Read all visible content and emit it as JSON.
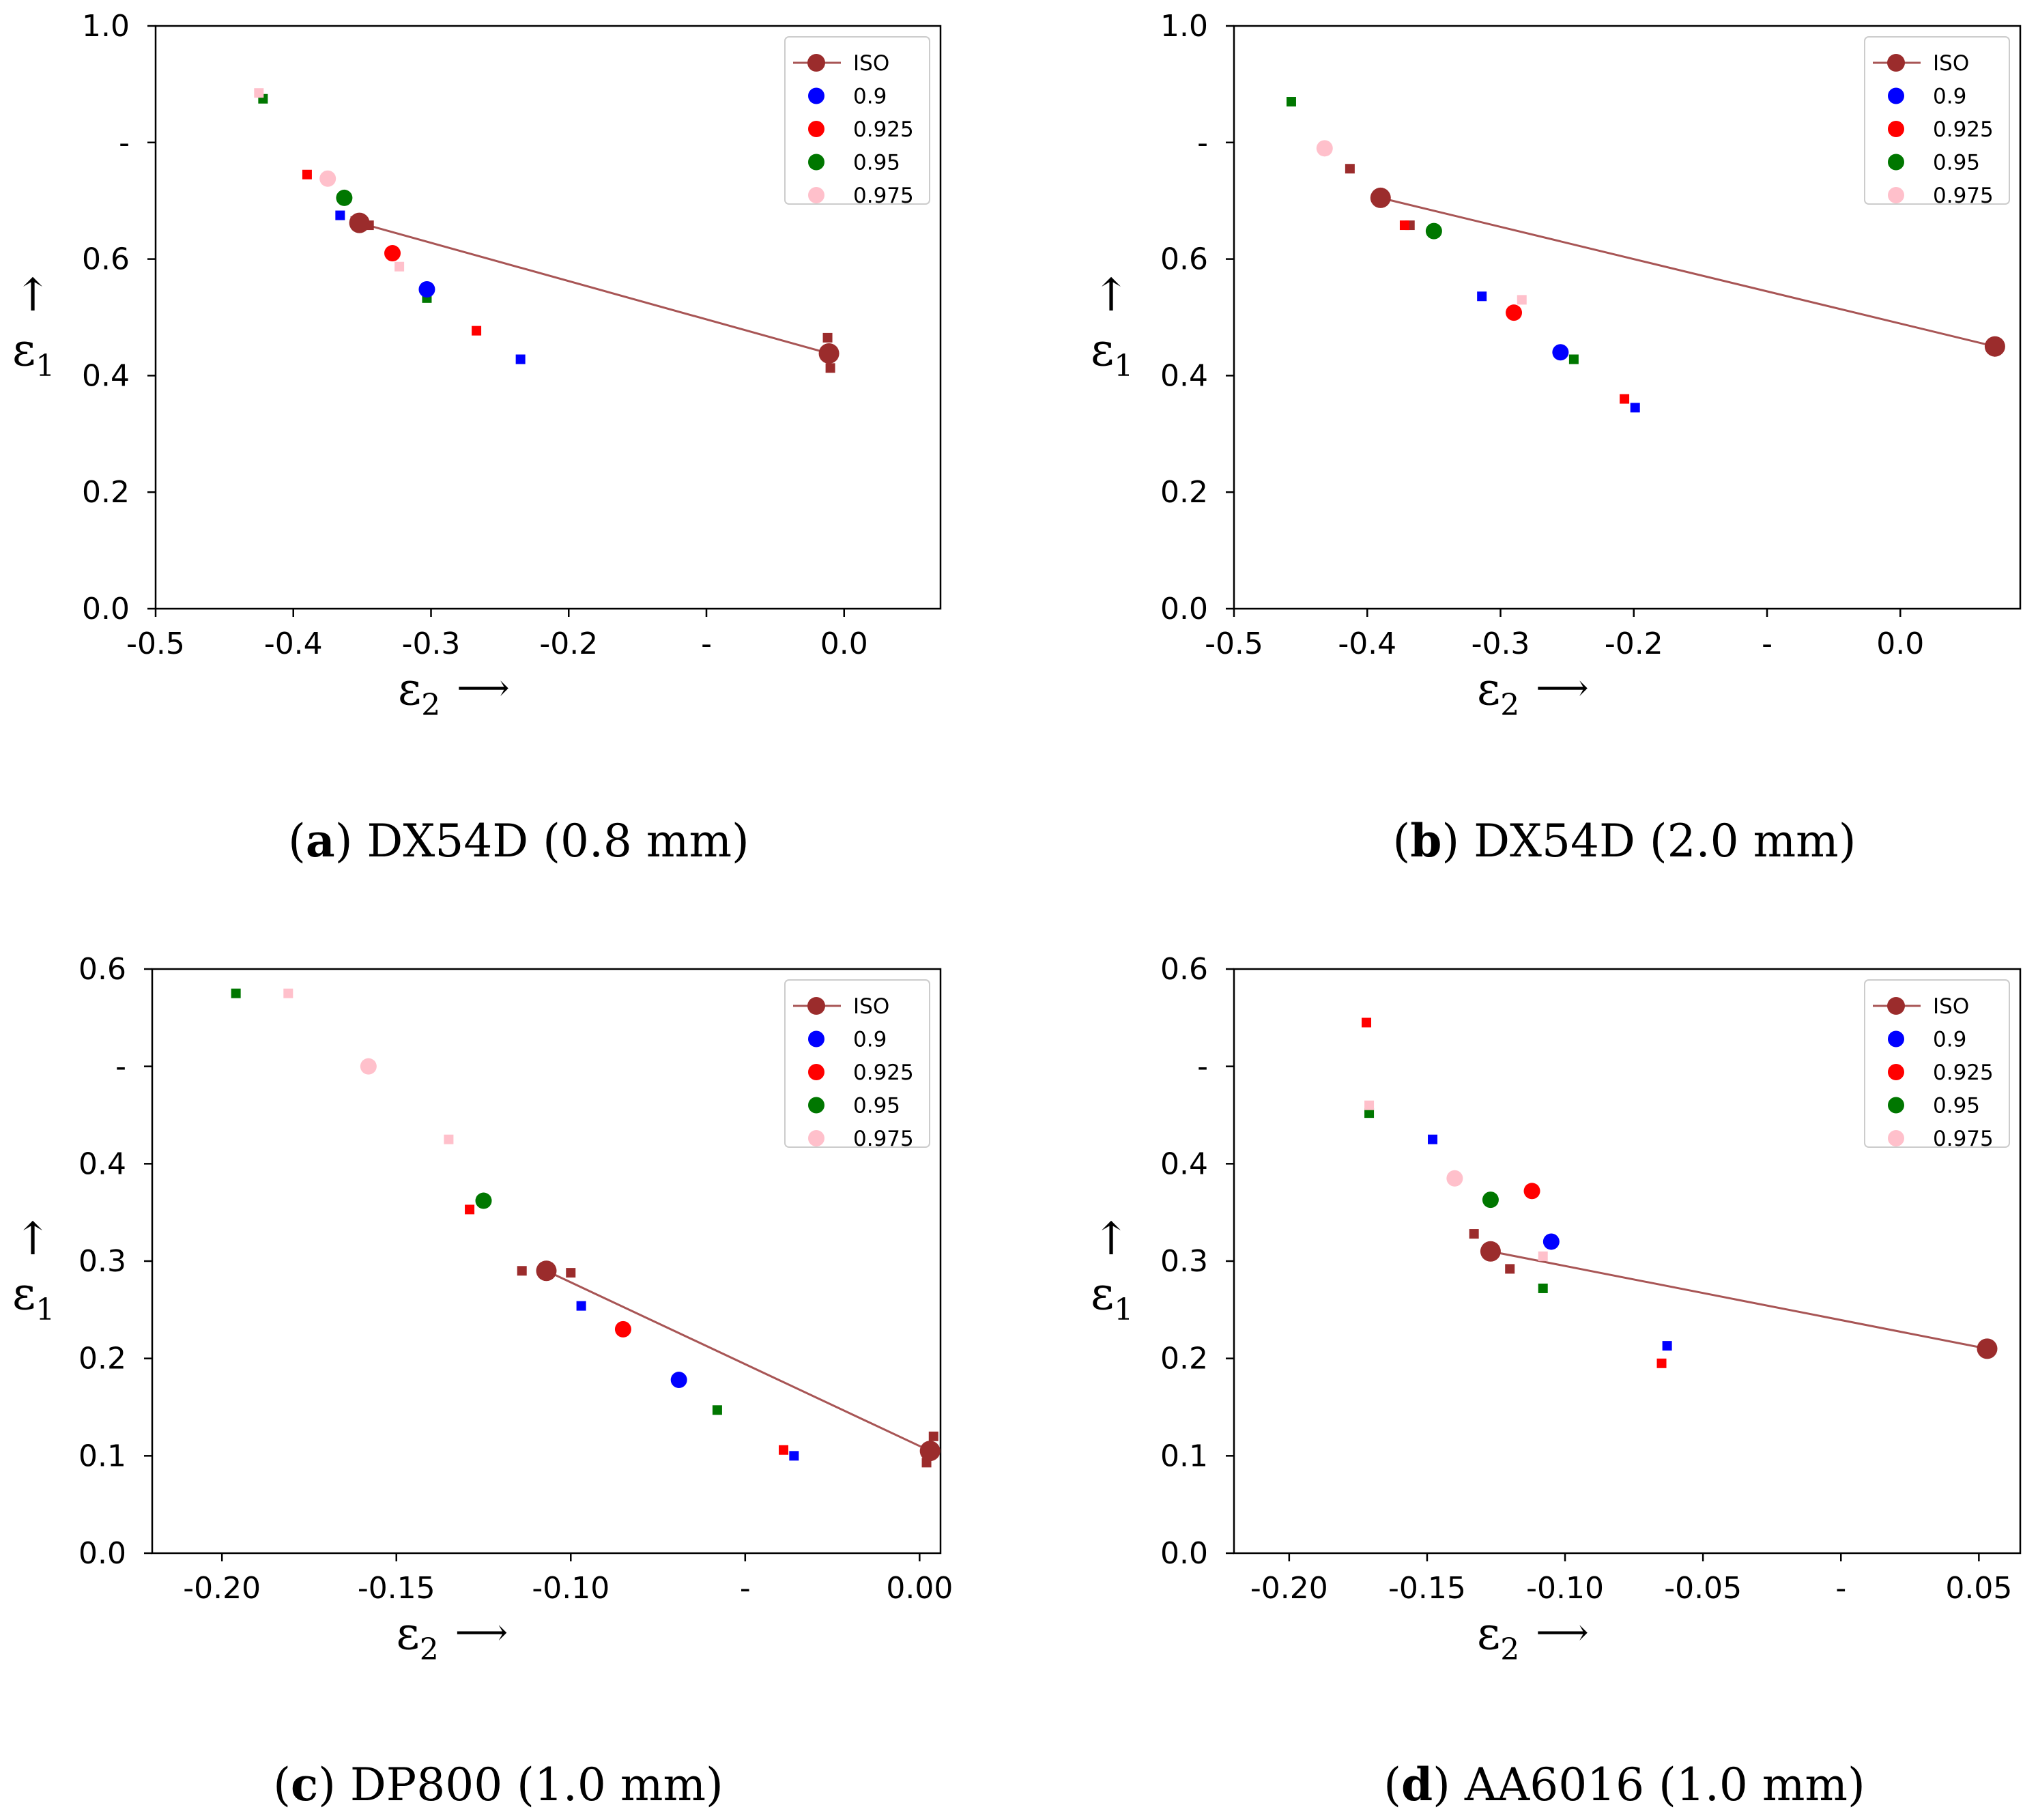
{
  "legend_labels": [
    "ISO",
    "0.9",
    "0.925",
    "0.95",
    "0.975"
  ],
  "series_colors": {
    "ISO": "#9b2c2c",
    "0.9": "#0000ff",
    "0.925": "#ff0000",
    "0.95": "#007700",
    "0.975": "#ffc0cb"
  },
  "axis_text": {
    "x_symbol": "ε",
    "x_sub": "2",
    "y_symbol": "ε",
    "y_sub": "1",
    "x_arrow": "⟶",
    "y_arrow": "↑"
  },
  "panels": [
    {
      "caption_letter": "a",
      "caption_text": "DX54D (0.8 mm)",
      "caption_open": "(",
      "caption_close": ")",
      "chart_data": {
        "type": "scatter",
        "xlim": [
          -0.5,
          0.07
        ],
        "ylim": [
          0.0,
          1.0
        ],
        "xticks": [
          -0.5,
          -0.4,
          -0.3,
          -0.2,
          -0.1,
          0.0
        ],
        "xtick_labels": [
          "-0.5",
          "-0.4",
          "-0.3",
          "-0.2",
          "-",
          "0.0"
        ],
        "yticks": [
          0.0,
          0.2,
          0.4,
          0.6,
          0.8,
          1.0
        ],
        "ytick_labels": [
          "0.0",
          "0.2",
          "0.4",
          "0.6",
          "-",
          "1.0"
        ],
        "legend_position": "top-right",
        "grid": false,
        "iso_line": [
          [
            -0.352,
            0.662
          ],
          [
            -0.011,
            0.438
          ]
        ],
        "large_points": [
          {
            "series": "ISO",
            "x": -0.352,
            "y": 0.662
          },
          {
            "series": "ISO",
            "x": -0.011,
            "y": 0.438
          },
          {
            "series": "0.9",
            "x": -0.303,
            "y": 0.548
          },
          {
            "series": "0.925",
            "x": -0.328,
            "y": 0.61
          },
          {
            "series": "0.95",
            "x": -0.363,
            "y": 0.705
          },
          {
            "series": "0.975",
            "x": -0.375,
            "y": 0.738
          }
        ],
        "small_points": [
          {
            "series": "ISO",
            "x": -0.355,
            "y": 0.665
          },
          {
            "series": "ISO",
            "x": -0.345,
            "y": 0.658
          },
          {
            "series": "ISO",
            "x": -0.012,
            "y": 0.465
          },
          {
            "series": "ISO",
            "x": -0.01,
            "y": 0.413
          },
          {
            "series": "0.9",
            "x": -0.366,
            "y": 0.675
          },
          {
            "series": "0.9",
            "x": -0.235,
            "y": 0.428
          },
          {
            "series": "0.925",
            "x": -0.39,
            "y": 0.745
          },
          {
            "series": "0.925",
            "x": -0.267,
            "y": 0.477
          },
          {
            "series": "0.95",
            "x": -0.422,
            "y": 0.875
          },
          {
            "series": "0.95",
            "x": -0.303,
            "y": 0.533
          },
          {
            "series": "0.975",
            "x": -0.425,
            "y": 0.885
          },
          {
            "series": "0.975",
            "x": -0.323,
            "y": 0.587
          }
        ]
      }
    },
    {
      "caption_letter": "b",
      "caption_text": "DX54D (2.0 mm)",
      "caption_open": "(",
      "caption_close": ")",
      "chart_data": {
        "type": "scatter",
        "xlim": [
          -0.5,
          0.09
        ],
        "ylim": [
          0.0,
          1.0
        ],
        "xticks": [
          -0.5,
          -0.4,
          -0.3,
          -0.2,
          -0.1,
          0.0
        ],
        "xtick_labels": [
          "-0.5",
          "-0.4",
          "-0.3",
          "-0.2",
          "-",
          "0.0"
        ],
        "yticks": [
          0.0,
          0.2,
          0.4,
          0.6,
          0.8,
          1.0
        ],
        "ytick_labels": [
          "0.0",
          "0.2",
          "0.4",
          "0.6",
          "-",
          "1.0"
        ],
        "legend_position": "top-right",
        "grid": false,
        "iso_line": [
          [
            -0.39,
            0.705
          ],
          [
            0.071,
            0.45
          ]
        ],
        "large_points": [
          {
            "series": "ISO",
            "x": -0.39,
            "y": 0.705
          },
          {
            "series": "ISO",
            "x": 0.071,
            "y": 0.45
          },
          {
            "series": "0.9",
            "x": -0.255,
            "y": 0.44
          },
          {
            "series": "0.925",
            "x": -0.29,
            "y": 0.508
          },
          {
            "series": "0.95",
            "x": -0.35,
            "y": 0.648
          },
          {
            "series": "0.975",
            "x": -0.432,
            "y": 0.79
          }
        ],
        "small_points": [
          {
            "series": "ISO",
            "x": -0.413,
            "y": 0.755
          },
          {
            "series": "ISO",
            "x": -0.368,
            "y": 0.658
          },
          {
            "series": "0.9",
            "x": -0.314,
            "y": 0.536
          },
          {
            "series": "0.9",
            "x": -0.199,
            "y": 0.345
          },
          {
            "series": "0.925",
            "x": -0.372,
            "y": 0.658
          },
          {
            "series": "0.925",
            "x": -0.207,
            "y": 0.36
          },
          {
            "series": "0.95",
            "x": -0.457,
            "y": 0.87
          },
          {
            "series": "0.95",
            "x": -0.245,
            "y": 0.428
          },
          {
            "series": "0.975",
            "x": -0.284,
            "y": 0.53
          }
        ]
      }
    },
    {
      "caption_letter": "c",
      "caption_text": "DP800 (1.0 mm)",
      "caption_open": "(",
      "caption_close": ")",
      "chart_data": {
        "type": "scatter",
        "xlim": [
          -0.22,
          0.006
        ],
        "ylim": [
          0.0,
          0.6
        ],
        "xticks": [
          -0.2,
          -0.15,
          -0.1,
          -0.05,
          0.0
        ],
        "xtick_labels": [
          "-0.20",
          "-0.15",
          "-0.10",
          "-",
          "0.00"
        ],
        "yticks": [
          0.0,
          0.1,
          0.2,
          0.3,
          0.4,
          0.5,
          0.6
        ],
        "ytick_labels": [
          "0.0",
          "0.1",
          "0.2",
          "0.3",
          "0.4",
          "-",
          "0.6"
        ],
        "legend_position": "top-right",
        "grid": false,
        "iso_line": [
          [
            -0.107,
            0.29
          ],
          [
            0.003,
            0.105
          ]
        ],
        "large_points": [
          {
            "series": "ISO",
            "x": -0.107,
            "y": 0.29
          },
          {
            "series": "ISO",
            "x": 0.003,
            "y": 0.105
          },
          {
            "series": "0.9",
            "x": -0.069,
            "y": 0.178
          },
          {
            "series": "0.925",
            "x": -0.085,
            "y": 0.23
          },
          {
            "series": "0.95",
            "x": -0.125,
            "y": 0.362
          },
          {
            "series": "0.975",
            "x": -0.158,
            "y": 0.5
          }
        ],
        "small_points": [
          {
            "series": "ISO",
            "x": -0.114,
            "y": 0.29
          },
          {
            "series": "ISO",
            "x": -0.1,
            "y": 0.288
          },
          {
            "series": "ISO",
            "x": 0.004,
            "y": 0.12
          },
          {
            "series": "ISO",
            "x": 0.002,
            "y": 0.093
          },
          {
            "series": "0.9",
            "x": -0.097,
            "y": 0.254
          },
          {
            "series": "0.9",
            "x": -0.036,
            "y": 0.1
          },
          {
            "series": "0.925",
            "x": -0.129,
            "y": 0.353
          },
          {
            "series": "0.925",
            "x": -0.039,
            "y": 0.106
          },
          {
            "series": "0.95",
            "x": -0.196,
            "y": 0.575
          },
          {
            "series": "0.95",
            "x": -0.058,
            "y": 0.147
          },
          {
            "series": "0.975",
            "x": -0.181,
            "y": 0.575
          },
          {
            "series": "0.975",
            "x": -0.135,
            "y": 0.425
          }
        ]
      }
    },
    {
      "caption_letter": "d",
      "caption_text": "AA6016 (1.0 mm)",
      "caption_open": "(",
      "caption_close": ")",
      "chart_data": {
        "type": "scatter",
        "xlim": [
          -0.22,
          0.065
        ],
        "ylim": [
          0.0,
          0.6
        ],
        "xticks": [
          -0.2,
          -0.15,
          -0.1,
          -0.05,
          0.0,
          0.05
        ],
        "xtick_labels": [
          "-0.20",
          "-0.15",
          "-0.10",
          "-0.05",
          "-",
          "0.05"
        ],
        "yticks": [
          0.0,
          0.1,
          0.2,
          0.3,
          0.4,
          0.5,
          0.6
        ],
        "ytick_labels": [
          "0.0",
          "0.1",
          "0.2",
          "0.3",
          "0.4",
          "-",
          "0.6"
        ],
        "legend_position": "top-right",
        "grid": false,
        "iso_line": [
          [
            -0.127,
            0.31
          ],
          [
            0.053,
            0.21
          ]
        ],
        "large_points": [
          {
            "series": "ISO",
            "x": -0.127,
            "y": 0.31
          },
          {
            "series": "ISO",
            "x": 0.053,
            "y": 0.21
          },
          {
            "series": "0.9",
            "x": -0.105,
            "y": 0.32
          },
          {
            "series": "0.925",
            "x": -0.112,
            "y": 0.372
          },
          {
            "series": "0.95",
            "x": -0.127,
            "y": 0.363
          },
          {
            "series": "0.975",
            "x": -0.14,
            "y": 0.385
          }
        ],
        "small_points": [
          {
            "series": "ISO",
            "x": -0.133,
            "y": 0.328
          },
          {
            "series": "ISO",
            "x": -0.12,
            "y": 0.292
          },
          {
            "series": "ISO",
            "x": 0.053,
            "y": 0.207
          },
          {
            "series": "0.9",
            "x": -0.148,
            "y": 0.425
          },
          {
            "series": "0.9",
            "x": -0.063,
            "y": 0.213
          },
          {
            "series": "0.925",
            "x": -0.172,
            "y": 0.545
          },
          {
            "series": "0.925",
            "x": -0.065,
            "y": 0.195
          },
          {
            "series": "0.95",
            "x": -0.171,
            "y": 0.452
          },
          {
            "series": "0.95",
            "x": -0.108,
            "y": 0.272
          },
          {
            "series": "0.975",
            "x": -0.171,
            "y": 0.46
          },
          {
            "series": "0.975",
            "x": -0.108,
            "y": 0.305
          }
        ]
      }
    }
  ]
}
